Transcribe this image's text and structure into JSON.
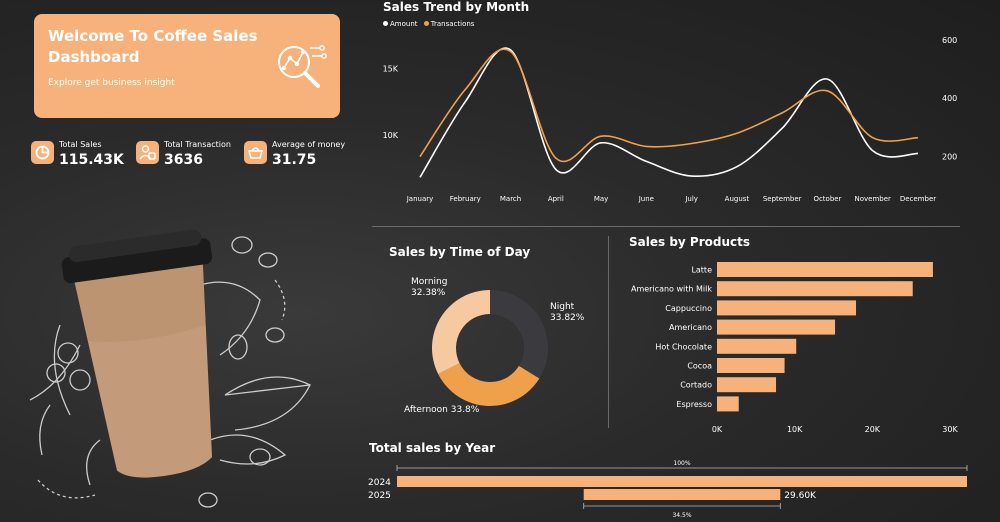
{
  "hero": {
    "title": "Welcome To Coffee Sales Dashboard",
    "subtitle": "Explore get business insight",
    "icon": "analytics-magnifier-icon"
  },
  "kpis": [
    {
      "label": "Total Sales",
      "value": "115.43K",
      "icon": "pie-chart-icon"
    },
    {
      "label": "Total Transaction",
      "value": "3636",
      "icon": "user-transaction-icon"
    },
    {
      "label": "Average of money",
      "value": "31.75",
      "icon": "basket-icon"
    }
  ],
  "colors": {
    "accent": "#f6b27a",
    "white_series": "#ffffff",
    "orange_series": "#f0a04b",
    "dark_slice": "#3b3b3f",
    "light_slice": "#f7c9a0"
  },
  "illustration": {
    "subject": "coffee-cup-illustration"
  },
  "chart_data": [
    {
      "type": "line",
      "title": "Sales Trend by Month",
      "categories": [
        "January",
        "February",
        "March",
        "April",
        "May",
        "June",
        "July",
        "August",
        "September",
        "October",
        "November",
        "December"
      ],
      "series": [
        {
          "name": "Amount",
          "axis": "left",
          "color": "#ffffff",
          "values": [
            6800,
            12500,
            16400,
            7400,
            9400,
            8000,
            6900,
            7600,
            10500,
            14200,
            8800,
            8600
          ]
        },
        {
          "name": "Transactions",
          "axis": "right",
          "color": "#f0a04b",
          "values": [
            200,
            430,
            560,
            195,
            270,
            235,
            245,
            280,
            350,
            425,
            265,
            265
          ]
        }
      ],
      "yticks_left": [
        "10K",
        "15K"
      ],
      "ytick_values_left": [
        10000,
        15000
      ],
      "ylim_left": [
        6600,
        17600
      ],
      "yticks_right": [
        "200",
        "400",
        "600"
      ],
      "ytick_values_right": [
        200,
        400,
        600
      ],
      "ylim_right": [
        120,
        620
      ],
      "legend": "top-left",
      "grid": false
    },
    {
      "type": "pie",
      "title": "Sales by Time of Day",
      "labels": [
        "Night",
        "Afternoon",
        "Morning"
      ],
      "values": [
        33.82,
        33.8,
        32.38
      ],
      "display": [
        "Night\n33.82%",
        "Afternoon 33.8%",
        "Morning\n32.38%"
      ],
      "colors": [
        "#3b3b3f",
        "#f0a04b",
        "#f7c9a0"
      ],
      "donut": true
    },
    {
      "type": "bar",
      "orientation": "horizontal",
      "title": "Sales by Products",
      "categories": [
        "Latte",
        "Americano with Milk",
        "Cappuccino",
        "Americano",
        "Hot Chocolate",
        "Cocoa",
        "Cortado",
        "Espresso"
      ],
      "values": [
        27800,
        25200,
        17900,
        15200,
        10200,
        8700,
        7600,
        2800
      ],
      "xticks": [
        "0K",
        "10K",
        "20K",
        "30K"
      ],
      "xtick_values": [
        0,
        10000,
        20000,
        30000
      ],
      "xlim": [
        0,
        30000
      ],
      "color": "#f6b27a",
      "grid": false
    },
    {
      "type": "bar",
      "orientation": "horizontal",
      "title": "Total sales by Year",
      "categories": [
        "2024",
        "2025"
      ],
      "values": [
        85830,
        29600
      ],
      "data_labels": [
        "",
        "29.60K"
      ],
      "annotations": [
        "100%",
        "34.5%"
      ],
      "color": "#f6b27a"
    }
  ]
}
